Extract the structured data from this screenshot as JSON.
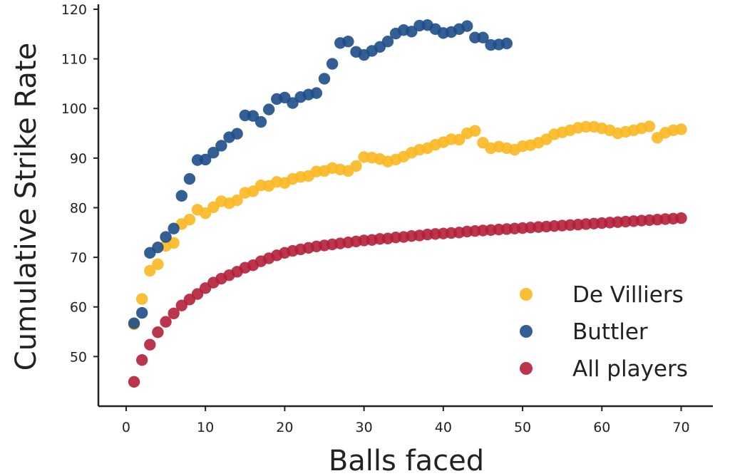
{
  "chart_data": {
    "type": "scatter",
    "xlabel": "Balls faced",
    "ylabel": "Cumulative Strike Rate",
    "xlim": [
      -3.5,
      74
    ],
    "ylim": [
      40,
      121
    ],
    "xticks": [
      0,
      10,
      20,
      30,
      40,
      50,
      60,
      70
    ],
    "yticks": [
      50,
      60,
      70,
      80,
      90,
      100,
      110,
      120
    ],
    "grid": false,
    "legend_position": "lower-right",
    "series": [
      {
        "name": "De Villiers",
        "color": "#F9B821",
        "x": [
          1,
          2,
          3,
          4,
          5,
          6,
          7,
          8,
          9,
          10,
          11,
          12,
          13,
          14,
          15,
          16,
          17,
          18,
          19,
          20,
          21,
          22,
          23,
          24,
          25,
          26,
          27,
          28,
          29,
          30,
          31,
          32,
          33,
          34,
          35,
          36,
          37,
          38,
          39,
          40,
          41,
          42,
          43,
          44,
          45,
          46,
          47,
          48,
          49,
          50,
          51,
          52,
          53,
          54,
          55,
          56,
          57,
          58,
          59,
          60,
          61,
          62,
          63,
          64,
          65,
          66,
          67,
          68,
          69,
          70
        ],
        "y": [
          56.5,
          61.6,
          67.3,
          68.6,
          72.3,
          72.9,
          76.7,
          77.6,
          79.6,
          78.9,
          80.1,
          81.3,
          80.9,
          81.5,
          83.0,
          83.3,
          84.5,
          84.4,
          85.2,
          85.0,
          85.8,
          86.2,
          86.4,
          87.3,
          87.4,
          88.0,
          87.7,
          87.4,
          88.4,
          90.2,
          90.1,
          89.8,
          89.3,
          89.7,
          90.3,
          91.1,
          91.7,
          92.0,
          92.7,
          93.2,
          93.8,
          93.7,
          95.0,
          95.5,
          93.1,
          92.0,
          92.3,
          92.0,
          91.7,
          92.4,
          92.6,
          93.1,
          93.8,
          94.8,
          95.2,
          95.6,
          96.1,
          96.3,
          96.3,
          96.0,
          95.6,
          95.0,
          95.3,
          95.6,
          96.0,
          96.4,
          94.1,
          95.1,
          95.6,
          95.8
        ]
      },
      {
        "name": "Buttler",
        "color": "#1D4E89",
        "x": [
          1,
          2,
          3,
          4,
          5,
          6,
          7,
          8,
          9,
          10,
          11,
          12,
          13,
          14,
          15,
          16,
          17,
          18,
          19,
          20,
          21,
          22,
          23,
          24,
          25,
          26,
          27,
          28,
          29,
          30,
          31,
          32,
          33,
          34,
          35,
          36,
          37,
          38,
          39,
          40,
          41,
          42,
          43,
          44,
          45,
          46,
          47,
          48
        ],
        "y": [
          56.7,
          58.8,
          70.9,
          72.0,
          74.1,
          75.8,
          82.4,
          85.8,
          89.6,
          89.7,
          91.1,
          92.5,
          94.2,
          94.9,
          98.6,
          98.5,
          97.3,
          99.8,
          101.9,
          102.2,
          101.1,
          102.3,
          102.8,
          103.1,
          106.0,
          109.0,
          113.2,
          113.5,
          111.4,
          110.8,
          111.6,
          112.4,
          113.5,
          115.1,
          115.8,
          115.5,
          116.7,
          116.8,
          116.0,
          115.2,
          115.4,
          116.0,
          116.6,
          114.3,
          114.3,
          112.8,
          112.9,
          113.1
        ]
      },
      {
        "name": "All players",
        "color": "#B41F3A",
        "x": [
          1,
          2,
          3,
          4,
          5,
          6,
          7,
          8,
          9,
          10,
          11,
          12,
          13,
          14,
          15,
          16,
          17,
          18,
          19,
          20,
          21,
          22,
          23,
          24,
          25,
          26,
          27,
          28,
          29,
          30,
          31,
          32,
          33,
          34,
          35,
          36,
          37,
          38,
          39,
          40,
          41,
          42,
          43,
          44,
          45,
          46,
          47,
          48,
          49,
          50,
          51,
          52,
          53,
          54,
          55,
          56,
          57,
          58,
          59,
          60,
          61,
          62,
          63,
          64,
          65,
          66,
          67,
          68,
          69,
          70
        ],
        "y": [
          44.9,
          49.3,
          52.4,
          54.9,
          57.0,
          58.7,
          60.3,
          61.5,
          62.6,
          63.8,
          64.9,
          65.7,
          66.4,
          67.1,
          67.9,
          68.4,
          69.2,
          69.8,
          70.4,
          70.9,
          71.3,
          71.6,
          71.9,
          72.2,
          72.4,
          72.6,
          72.8,
          73.0,
          73.2,
          73.4,
          73.5,
          73.7,
          73.8,
          74.0,
          74.1,
          74.3,
          74.4,
          74.6,
          74.7,
          74.8,
          74.9,
          75.0,
          75.2,
          75.3,
          75.4,
          75.5,
          75.6,
          75.7,
          75.8,
          75.9,
          76.0,
          76.1,
          76.2,
          76.3,
          76.4,
          76.5,
          76.6,
          76.7,
          76.8,
          76.9,
          77.0,
          77.1,
          77.2,
          77.3,
          77.4,
          77.5,
          77.6,
          77.7,
          77.8,
          77.9
        ]
      }
    ]
  }
}
